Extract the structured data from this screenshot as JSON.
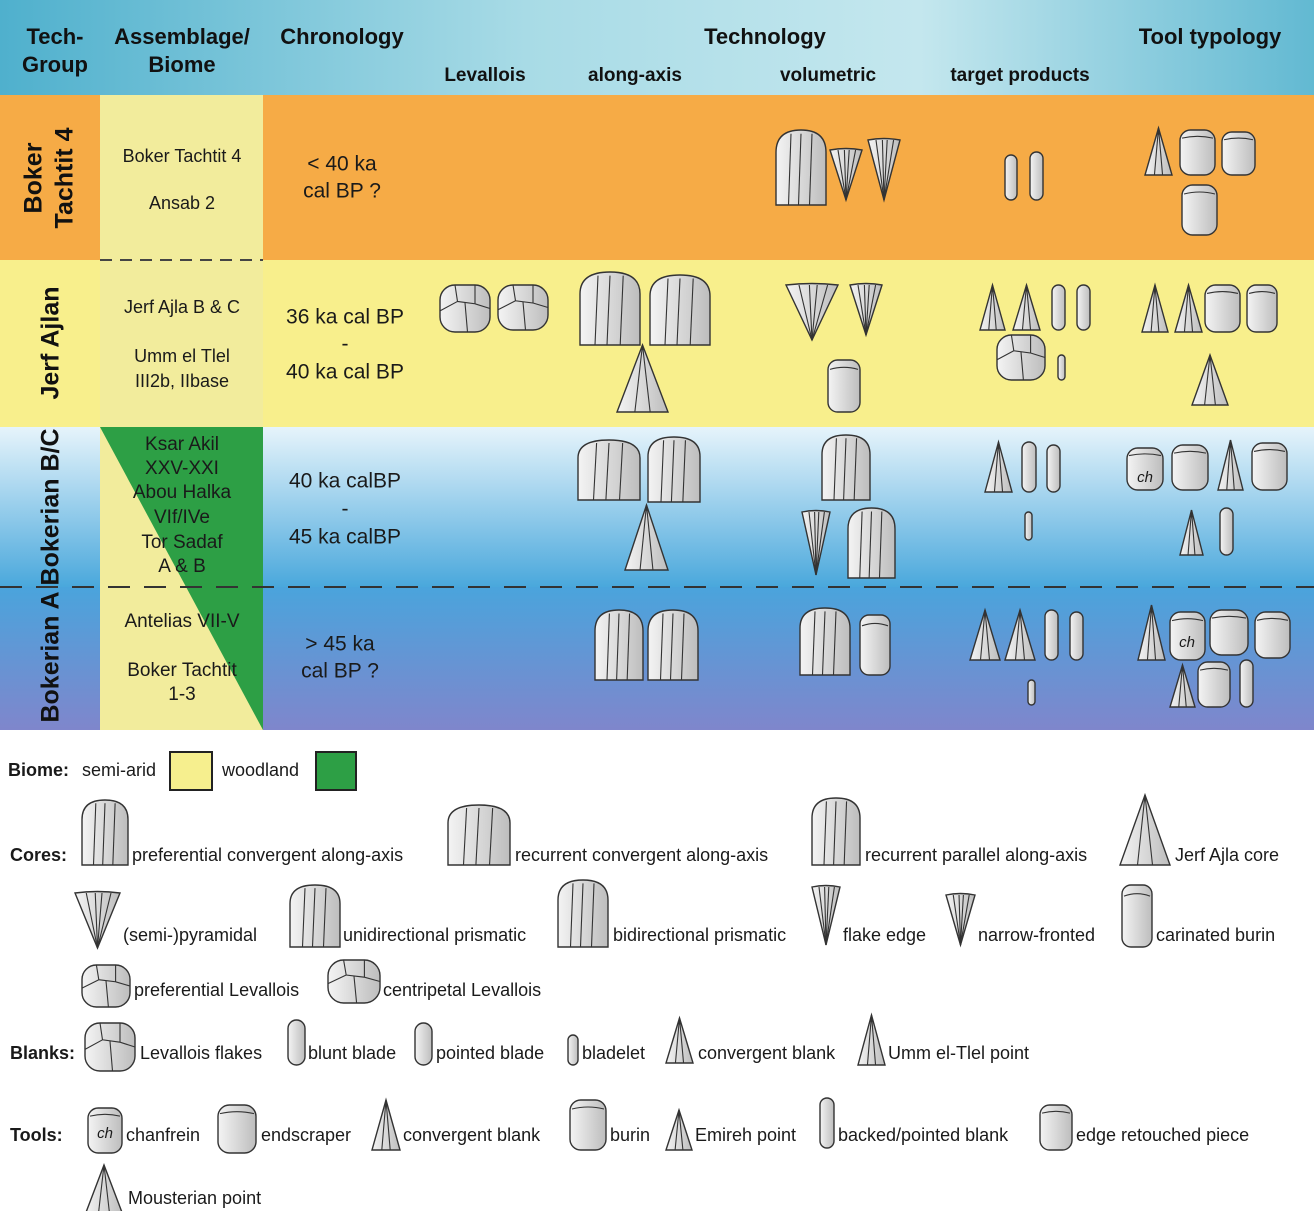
{
  "header": {
    "tech_group": [
      "Tech-",
      "Group"
    ],
    "assemblage": [
      "Assemblage/",
      "Biome"
    ],
    "chronology": "Chronology",
    "technology": "Technology",
    "technology_sub": [
      "Levallois",
      "along-axis",
      "volumetric",
      "target products"
    ],
    "tool_typology": "Tool typology"
  },
  "rows": [
    {
      "group": [
        "Boker",
        "Tachtit 4"
      ],
      "assemblage": [
        "Boker Tachtit 4",
        "Ansab 2"
      ],
      "chronology": [
        "< 40 ka",
        "cal BP ?"
      ]
    },
    {
      "group": [
        "Jerf Ajlan"
      ],
      "assemblage": [
        "Jerf Ajla B & C",
        "Umm el Tlel",
        "III2b, IIbase"
      ],
      "chronology": [
        "36 ka cal BP",
        "-",
        "40 ka cal BP"
      ]
    },
    {
      "group": [
        "Bokerian B/C"
      ],
      "assemblage": [
        "Ksar Akil",
        "XXV-XXI",
        "Abou Halka",
        "VIf/IVe",
        "Tor Sadaf",
        "A & B"
      ],
      "chronology": [
        "40 ka calBP",
        "-",
        "45 ka calBP"
      ],
      "icon_text": [
        "ch"
      ]
    },
    {
      "group": [
        "Bokerian A"
      ],
      "assemblage": [
        "Antelias VII-V",
        "Boker Tachtit",
        "1-3"
      ],
      "chronology": [
        "> 45 ka",
        "cal BP ?"
      ],
      "icon_text": [
        "ch"
      ]
    }
  ],
  "legend": {
    "biome": {
      "label": "Biome:",
      "items": [
        "semi-arid",
        "woodland"
      ]
    },
    "cores": {
      "label": "Cores:",
      "items": [
        "preferential convergent along-axis",
        "recurrent convergent along-axis",
        "recurrent parallel along-axis",
        "Jerf Ajla core",
        "(semi-)pyramidal",
        "unidirectional prismatic",
        "bidirectional prismatic",
        "flake edge",
        "narrow-fronted",
        "carinated burin",
        "preferential Levallois",
        "centripetal Levallois"
      ]
    },
    "blanks": {
      "label": "Blanks:",
      "items": [
        "Levallois flakes",
        "blunt blade",
        "pointed blade",
        "bladelet",
        "convergent blank",
        "Umm el-Tlel point"
      ]
    },
    "tools": {
      "label": "Tools:",
      "items": [
        "chanfrein",
        "endscraper",
        "convergent blank",
        "burin",
        "Emireh point",
        "backed/pointed blank",
        "edge retouched piece",
        "Mousterian point"
      ],
      "icon_text": [
        "ch"
      ]
    }
  }
}
